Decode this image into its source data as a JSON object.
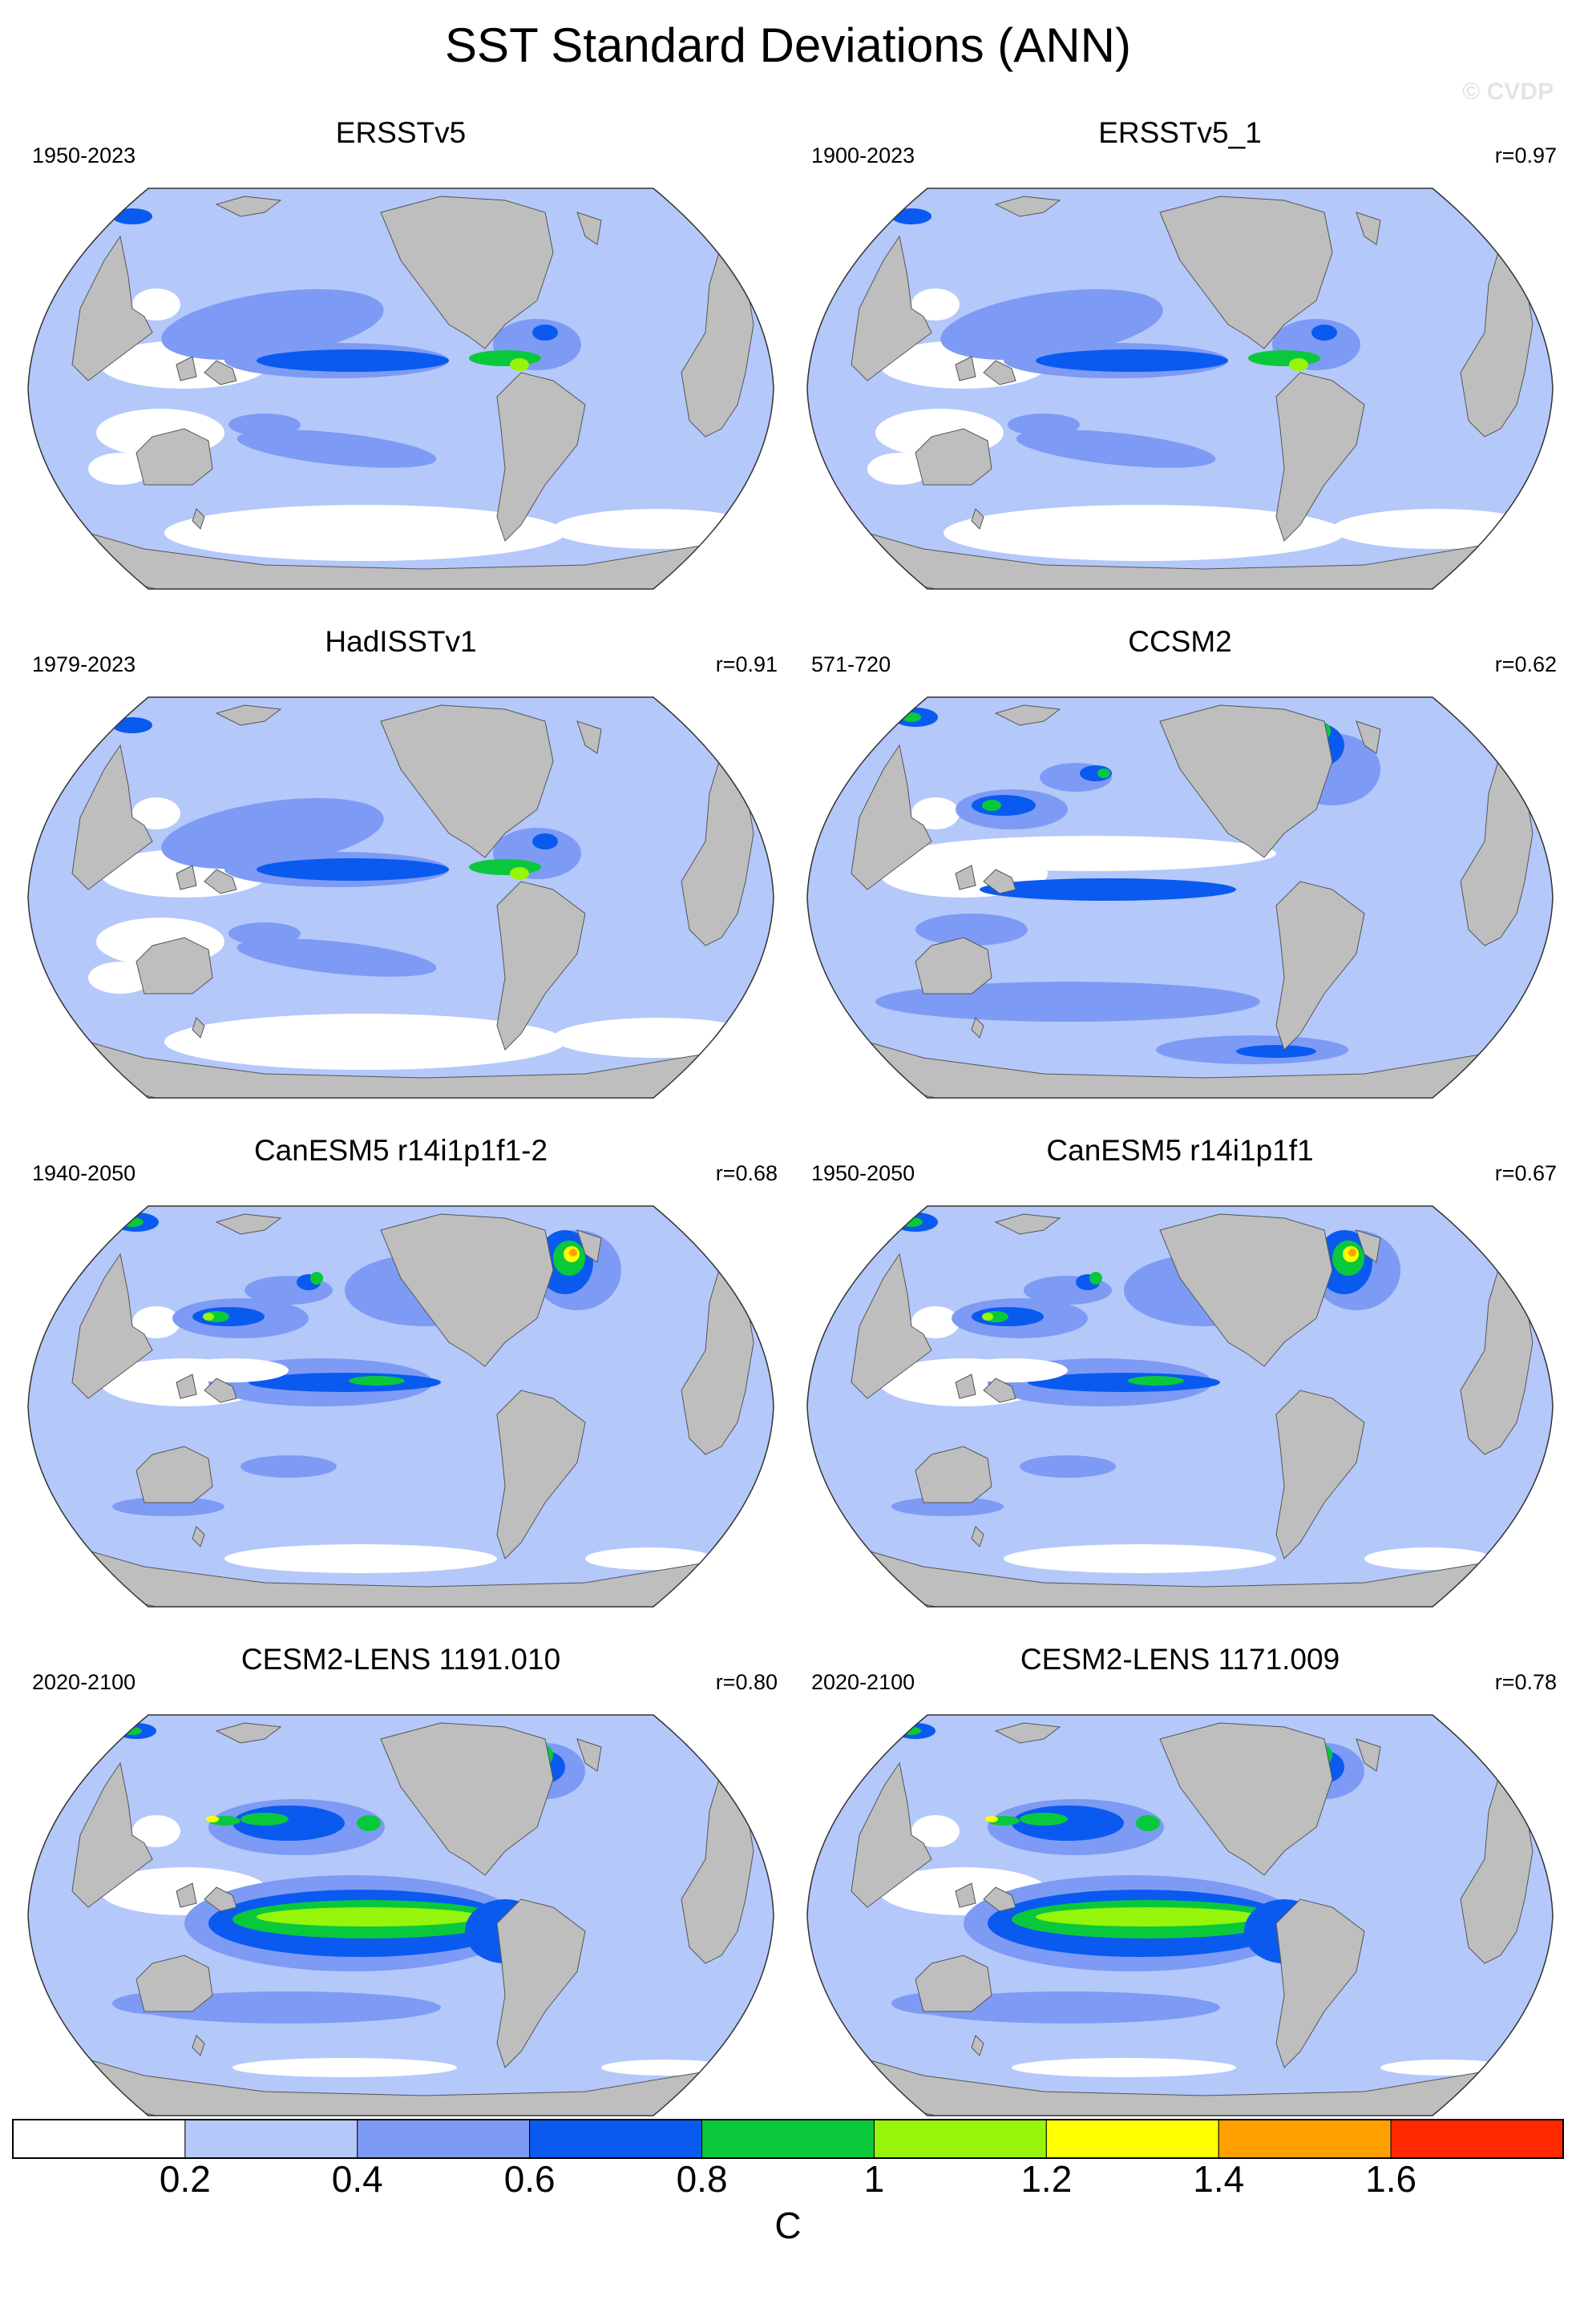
{
  "title": "SST Standard Deviations (ANN)",
  "watermark": "© CVDP",
  "panels": [
    {
      "title": "ERSSTv5",
      "period": "1950-2023",
      "corr": "",
      "variant": "obs",
      "pattern_correlation": null
    },
    {
      "title": "ERSSTv5_1",
      "period": "1900-2023",
      "corr": "r=0.97",
      "variant": "obs",
      "pattern_correlation": 0.97
    },
    {
      "title": "HadISSTv1",
      "period": "1979-2023",
      "corr": "r=0.91",
      "variant": "obs",
      "pattern_correlation": 0.91
    },
    {
      "title": "CCSM2",
      "period": "571-720",
      "corr": "r=0.62",
      "variant": "ccsm",
      "pattern_correlation": 0.62
    },
    {
      "title": "CanESM5 r14i1p1f1-2",
      "period": "1940-2050",
      "corr": "r=0.68",
      "variant": "canesm",
      "pattern_correlation": 0.68
    },
    {
      "title": "CanESM5 r14i1p1f1",
      "period": "1950-2050",
      "corr": "r=0.67",
      "variant": "canesm",
      "pattern_correlation": 0.67
    },
    {
      "title": "CESM2-LENS 1191.010",
      "period": "2020-2100",
      "corr": "r=0.80",
      "variant": "cesm",
      "pattern_correlation": 0.8
    },
    {
      "title": "CESM2-LENS 1171.009",
      "period": "2020-2100",
      "corr": "r=0.78",
      "variant": "cesm",
      "pattern_correlation": 0.78
    }
  ],
  "colorbar": {
    "unit": "C",
    "labels": [
      "0.2",
      "0.4",
      "0.6",
      "0.8",
      "1",
      "1.2",
      "1.4",
      "1.6"
    ],
    "levels": [
      0.2,
      0.4,
      0.6,
      0.8,
      1.0,
      1.2,
      1.4,
      1.6
    ],
    "colors": [
      "#ffffff",
      "#b4c8fa",
      "#7d9bf5",
      "#0a5af0",
      "#0ac83c",
      "#96f50a",
      "#ffff00",
      "#ffa000",
      "#ff2800"
    ]
  },
  "land_color": "#bebebe",
  "map_projection": "Robinson",
  "map_center": "Pacific (180°)"
}
